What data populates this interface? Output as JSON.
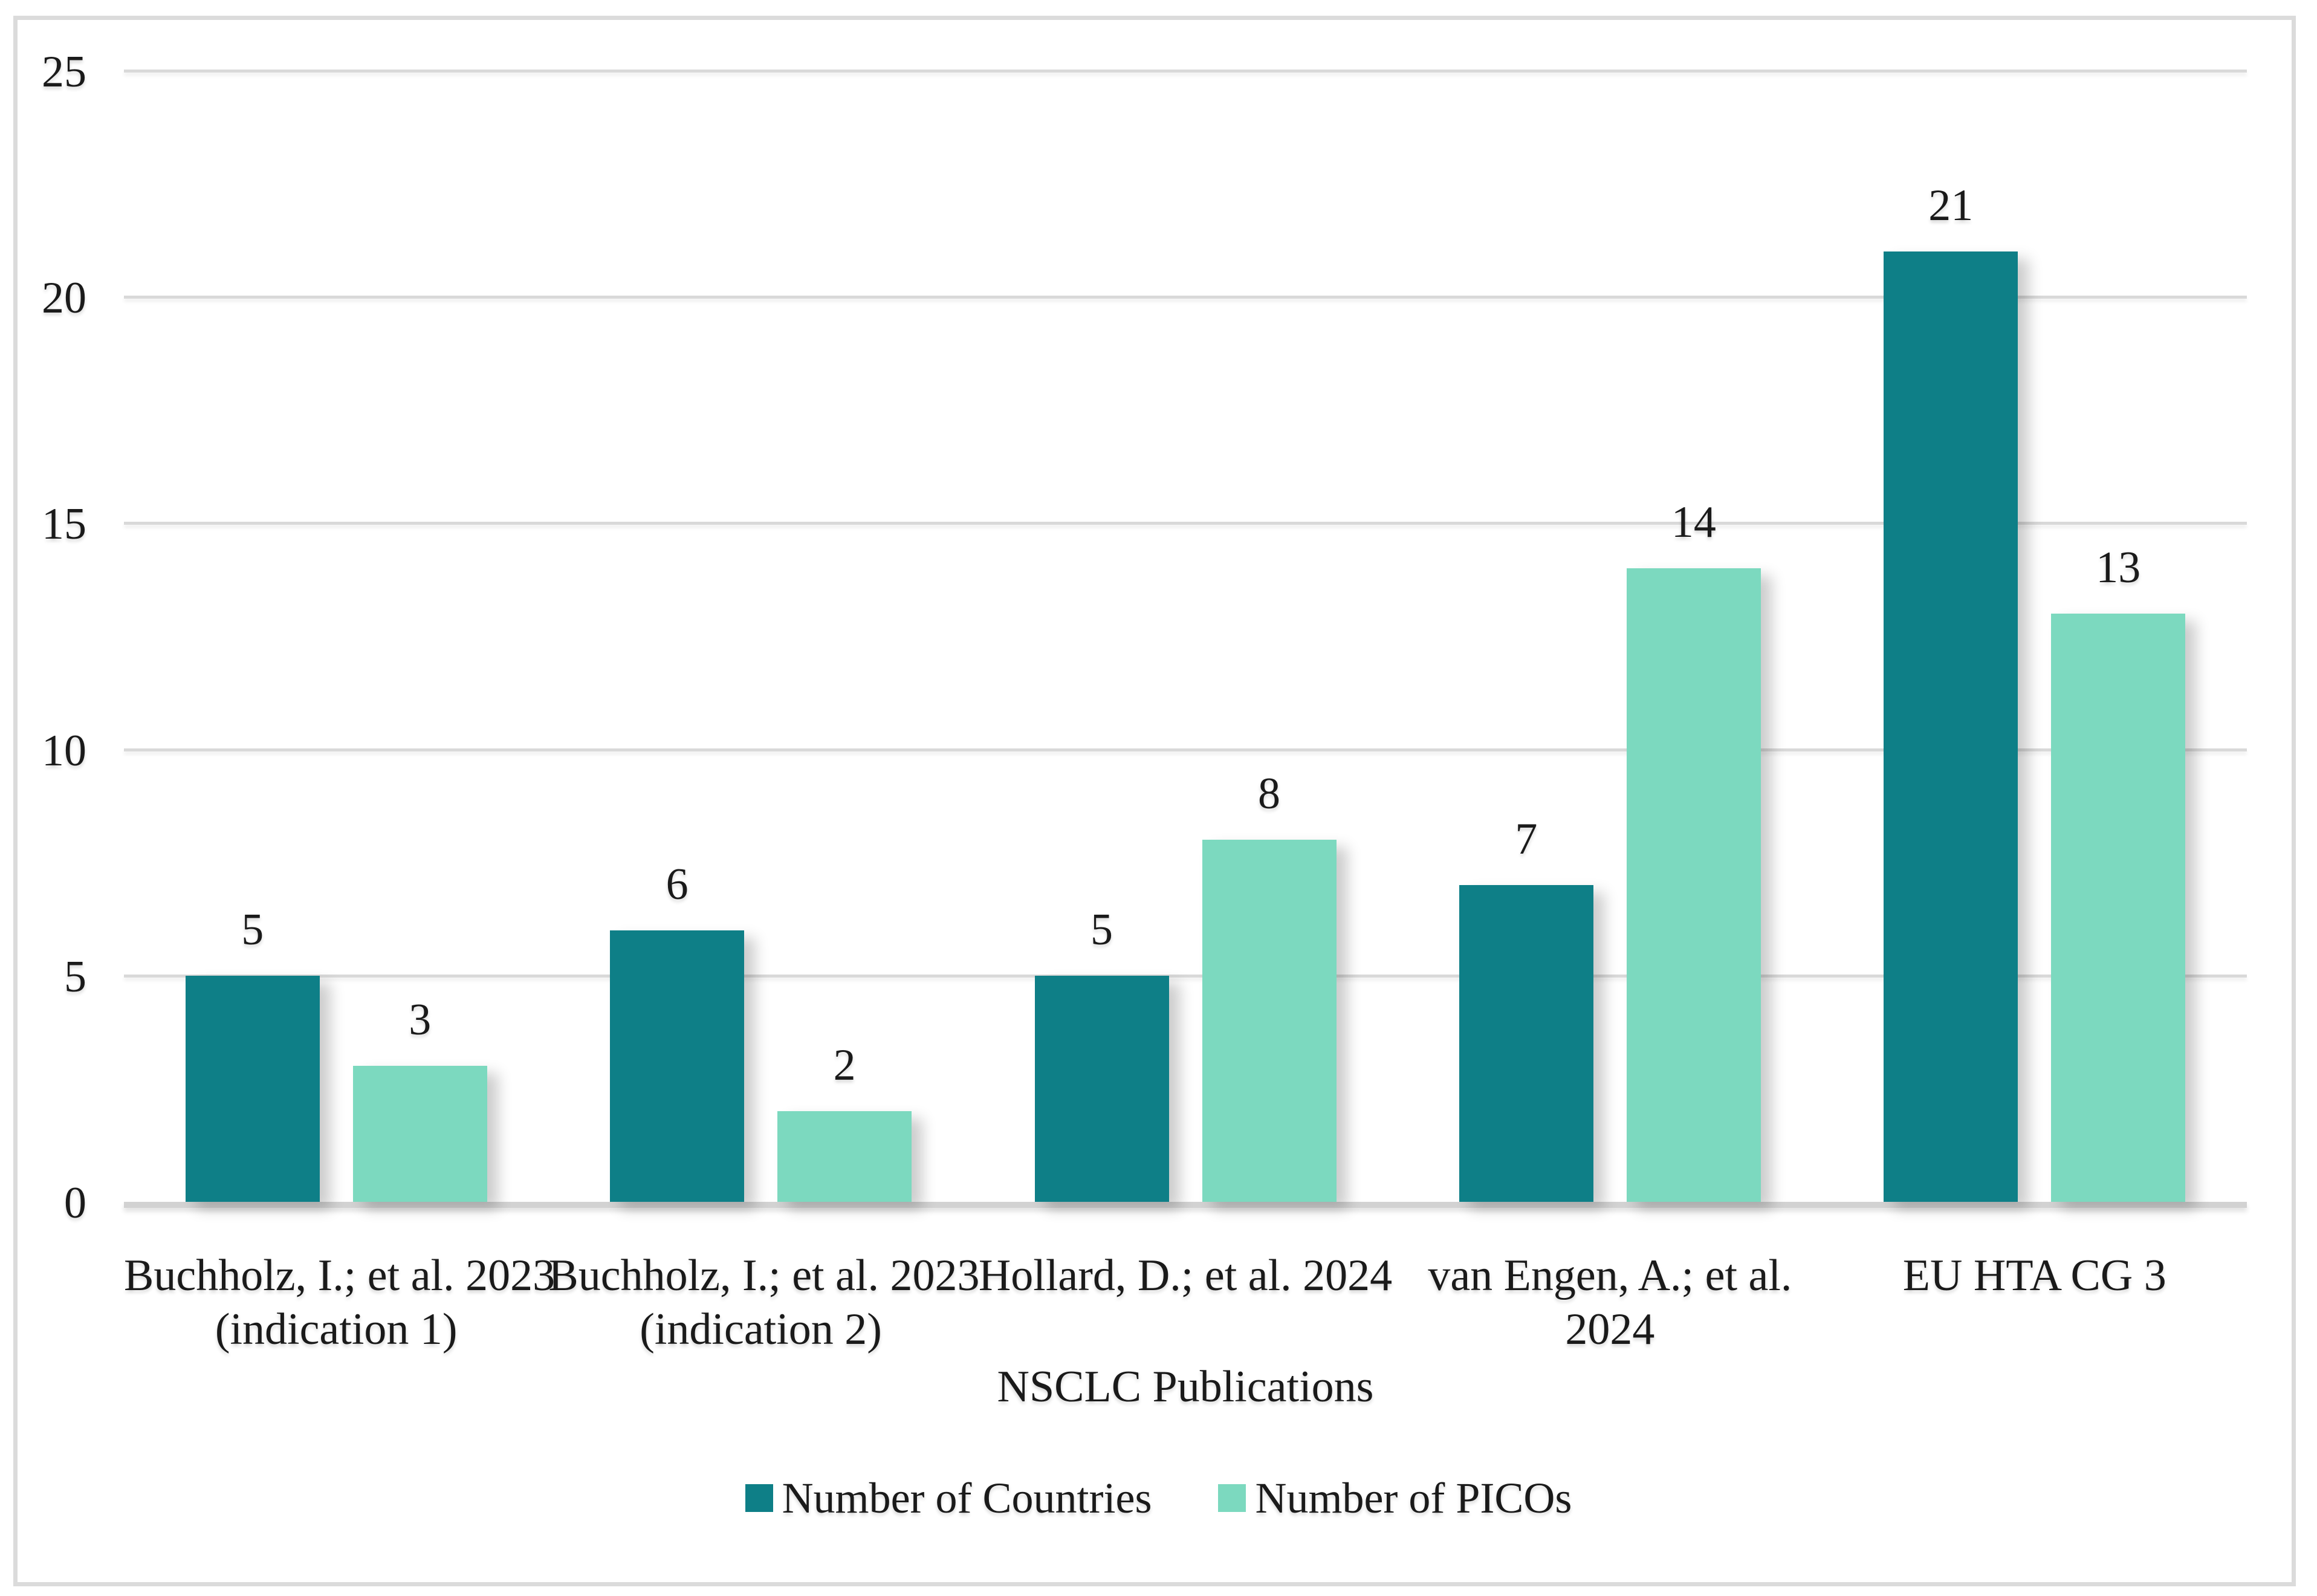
{
  "figure": {
    "background": "#FFFFFF",
    "frame_border_color": "#DBDBDB"
  },
  "chart_data": {
    "type": "bar",
    "title": "",
    "categories": [
      "Buchholz, I.; et al. 2023\n(indication 1)",
      "Buchholz, I.; et al. 2023\n(indication 2)",
      "Hollard, D.; et al. 2024",
      "van Engen, A.; et al.\n2024",
      "EU HTA CG 3"
    ],
    "series": [
      {
        "name": "Number of Countries",
        "color": "#0E7F87",
        "values": [
          5,
          6,
          5,
          7,
          21
        ]
      },
      {
        "name": "Number of PICOs",
        "color": "#7CD9BF",
        "values": [
          3,
          2,
          8,
          14,
          13
        ]
      }
    ],
    "xlabel": "NSCLC Publications",
    "ylabel": "",
    "ylim": [
      0,
      25
    ],
    "yticks": [
      0,
      5,
      10,
      15,
      20,
      25
    ],
    "grid": true,
    "data_labels": true,
    "legend_position": "bottom",
    "text_color": "#1A1A1A",
    "gridline_color": "#D9D9D9",
    "axis_line_color": "#D2D2D2"
  }
}
